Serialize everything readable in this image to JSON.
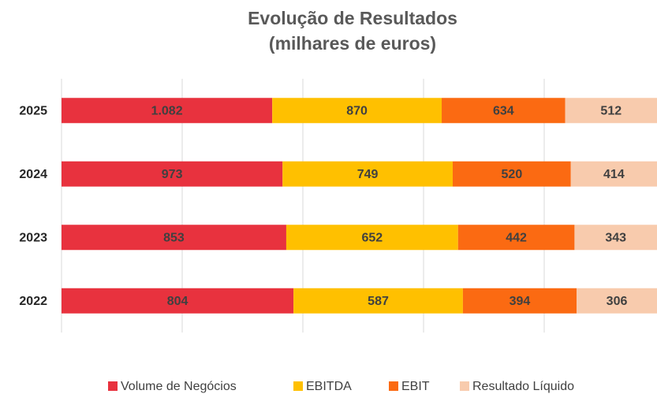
{
  "chart_data": {
    "type": "bar",
    "orientation": "horizontal",
    "stacking": "percent",
    "title": "Evolução de Resultados",
    "subtitle": "(milhares de euros)",
    "categories": [
      "2025",
      "2024",
      "2023",
      "2022"
    ],
    "series": [
      {
        "name": "Volume de Negócios",
        "color": "#e8323e",
        "values": [
          1082,
          973,
          853,
          804
        ],
        "value_labels": [
          "1.082",
          "973",
          "853",
          "804"
        ]
      },
      {
        "name": "EBITDA",
        "color": "#ffc000",
        "values": [
          870,
          749,
          652,
          587
        ]
      },
      {
        "name": "EBIT",
        "color": "#fb6a12",
        "values": [
          634,
          520,
          442,
          394
        ]
      },
      {
        "name": "Resultado Líquido",
        "color": "#f8cbad",
        "values": [
          512,
          414,
          343,
          306
        ]
      }
    ],
    "xlim": [
      0,
      100
    ],
    "xticks": [
      0,
      20,
      40,
      60,
      80,
      100
    ],
    "grid": true,
    "legend": "bottom"
  }
}
